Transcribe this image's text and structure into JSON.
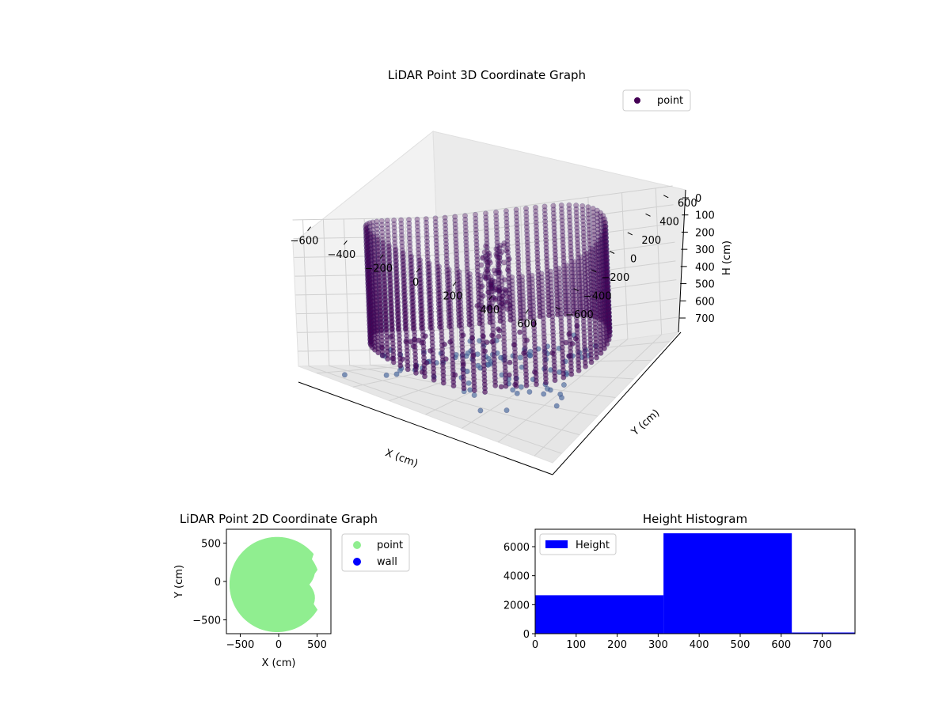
{
  "chart_data": [
    {
      "type": "scatter",
      "projection": "3d",
      "title": "LiDAR Point 3D Coordinate Graph",
      "xlabel": "X (cm)",
      "ylabel": "Y (cm)",
      "zlabel": "H (cm)",
      "xlim": [
        -700,
        700
      ],
      "ylim": [
        -700,
        700
      ],
      "zlim": [
        0,
        780
      ],
      "z_inverted": true,
      "xticks": [
        "−600",
        "−400",
        "−200",
        "0",
        "200",
        "400",
        "600"
      ],
      "yticks": [
        "−600",
        "−400",
        "−200",
        "0",
        "200",
        "400",
        "600"
      ],
      "zticks": [
        "0",
        "100",
        "200",
        "300",
        "400",
        "500",
        "600",
        "700"
      ],
      "grid": true,
      "legend": {
        "placement": "top-right",
        "entries": [
          "point"
        ]
      },
      "series": [
        {
          "name": "point",
          "color": "#440154",
          "structure": "cylindrical wall of points, radius ~600 cm, heights ~0–600 cm; interior cluster near center; sparse points near floor",
          "wall_radius": 600,
          "wall_height_range": [
            0,
            600
          ],
          "sample_points": [
            {
              "x": 60,
              "y": 20,
              "h": 100
            },
            {
              "x": 40,
              "y": 0,
              "h": 200
            },
            {
              "x": 20,
              "y": 10,
              "h": 300
            },
            {
              "x": -100,
              "y": 50,
              "h": 400
            },
            {
              "x": 100,
              "y": -100,
              "h": 500
            },
            {
              "x": -300,
              "y": -400,
              "h": 700
            },
            {
              "x": 200,
              "y": -500,
              "h": 750
            },
            {
              "x": 500,
              "y": -200,
              "h": 720
            },
            {
              "x": 300,
              "y": 300,
              "h": 650
            },
            {
              "x": -500,
              "y": -600,
              "h": 760
            }
          ]
        }
      ]
    },
    {
      "type": "scatter",
      "title": "LiDAR Point 2D Coordinate Graph",
      "xlabel": "X (cm)",
      "ylabel": "Y (cm)",
      "xlim": [
        -680,
        680
      ],
      "ylim": [
        -680,
        680
      ],
      "xticks": [
        "−500",
        "0",
        "500"
      ],
      "yticks": [
        "500",
        "0",
        "−500"
      ],
      "legend": {
        "placement": "outside-right",
        "entries": [
          "point",
          "wall"
        ]
      },
      "series": [
        {
          "name": "point",
          "color": "#90ee90",
          "shape": "filled disk radius ~620 cm centered near (0,0) with notch on right side"
        },
        {
          "name": "wall",
          "color": "#0000ff",
          "values": []
        }
      ]
    },
    {
      "type": "bar",
      "title": "Height Histogram",
      "xlim": [
        0,
        780
      ],
      "ylim": [
        0,
        7200
      ],
      "xticks": [
        "0",
        "100",
        "200",
        "300",
        "400",
        "500",
        "600",
        "700"
      ],
      "yticks": [
        "0",
        "2000",
        "4000",
        "6000"
      ],
      "legend": {
        "placement": "top-left",
        "entries": [
          "Height"
        ]
      },
      "color": "#0000ff",
      "bins": [
        {
          "start": 0,
          "end": 313,
          "count": 2650
        },
        {
          "start": 313,
          "end": 626,
          "count": 6920
        },
        {
          "start": 626,
          "end": 939,
          "count": 80
        }
      ],
      "series": [
        {
          "name": "Height",
          "values": [
            2650,
            6920,
            80
          ]
        }
      ]
    }
  ]
}
